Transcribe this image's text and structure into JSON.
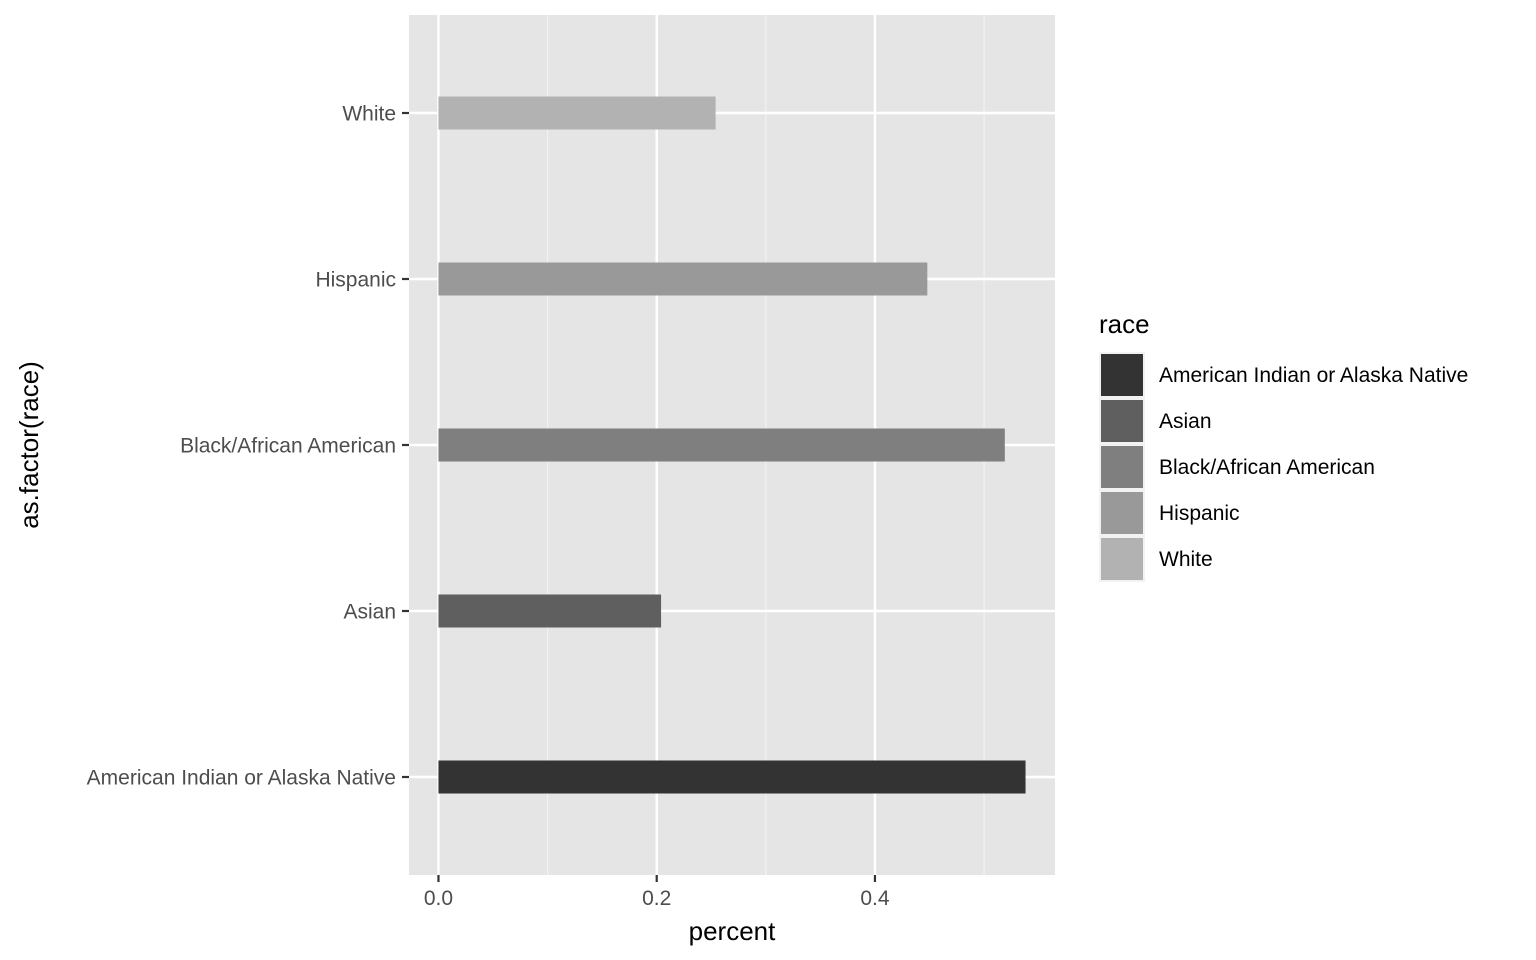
{
  "chart_data": {
    "type": "bar",
    "orientation": "horizontal",
    "categories": [
      "American Indian or Alaska Native",
      "Asian",
      "Black/African American",
      "Hispanic",
      "White"
    ],
    "values": [
      0.538,
      0.204,
      0.519,
      0.448,
      0.254
    ],
    "colors": [
      "#333333",
      "#5f5f5f",
      "#7f7f7f",
      "#999999",
      "#b2b2b2"
    ],
    "xlabel": "percent",
    "ylabel": "as.factor(race)",
    "xticks": [
      0.0,
      0.2,
      0.4
    ],
    "xtick_labels": [
      "0.0",
      "0.2",
      "0.4"
    ],
    "xlim": [
      -0.027,
      0.565
    ],
    "grid": true,
    "panel_background": "#e5e5e5",
    "legend": {
      "title": "race",
      "position": "right",
      "entries": [
        "American Indian or Alaska Native",
        "Asian",
        "Black/African American",
        "Hispanic",
        "White"
      ]
    }
  }
}
